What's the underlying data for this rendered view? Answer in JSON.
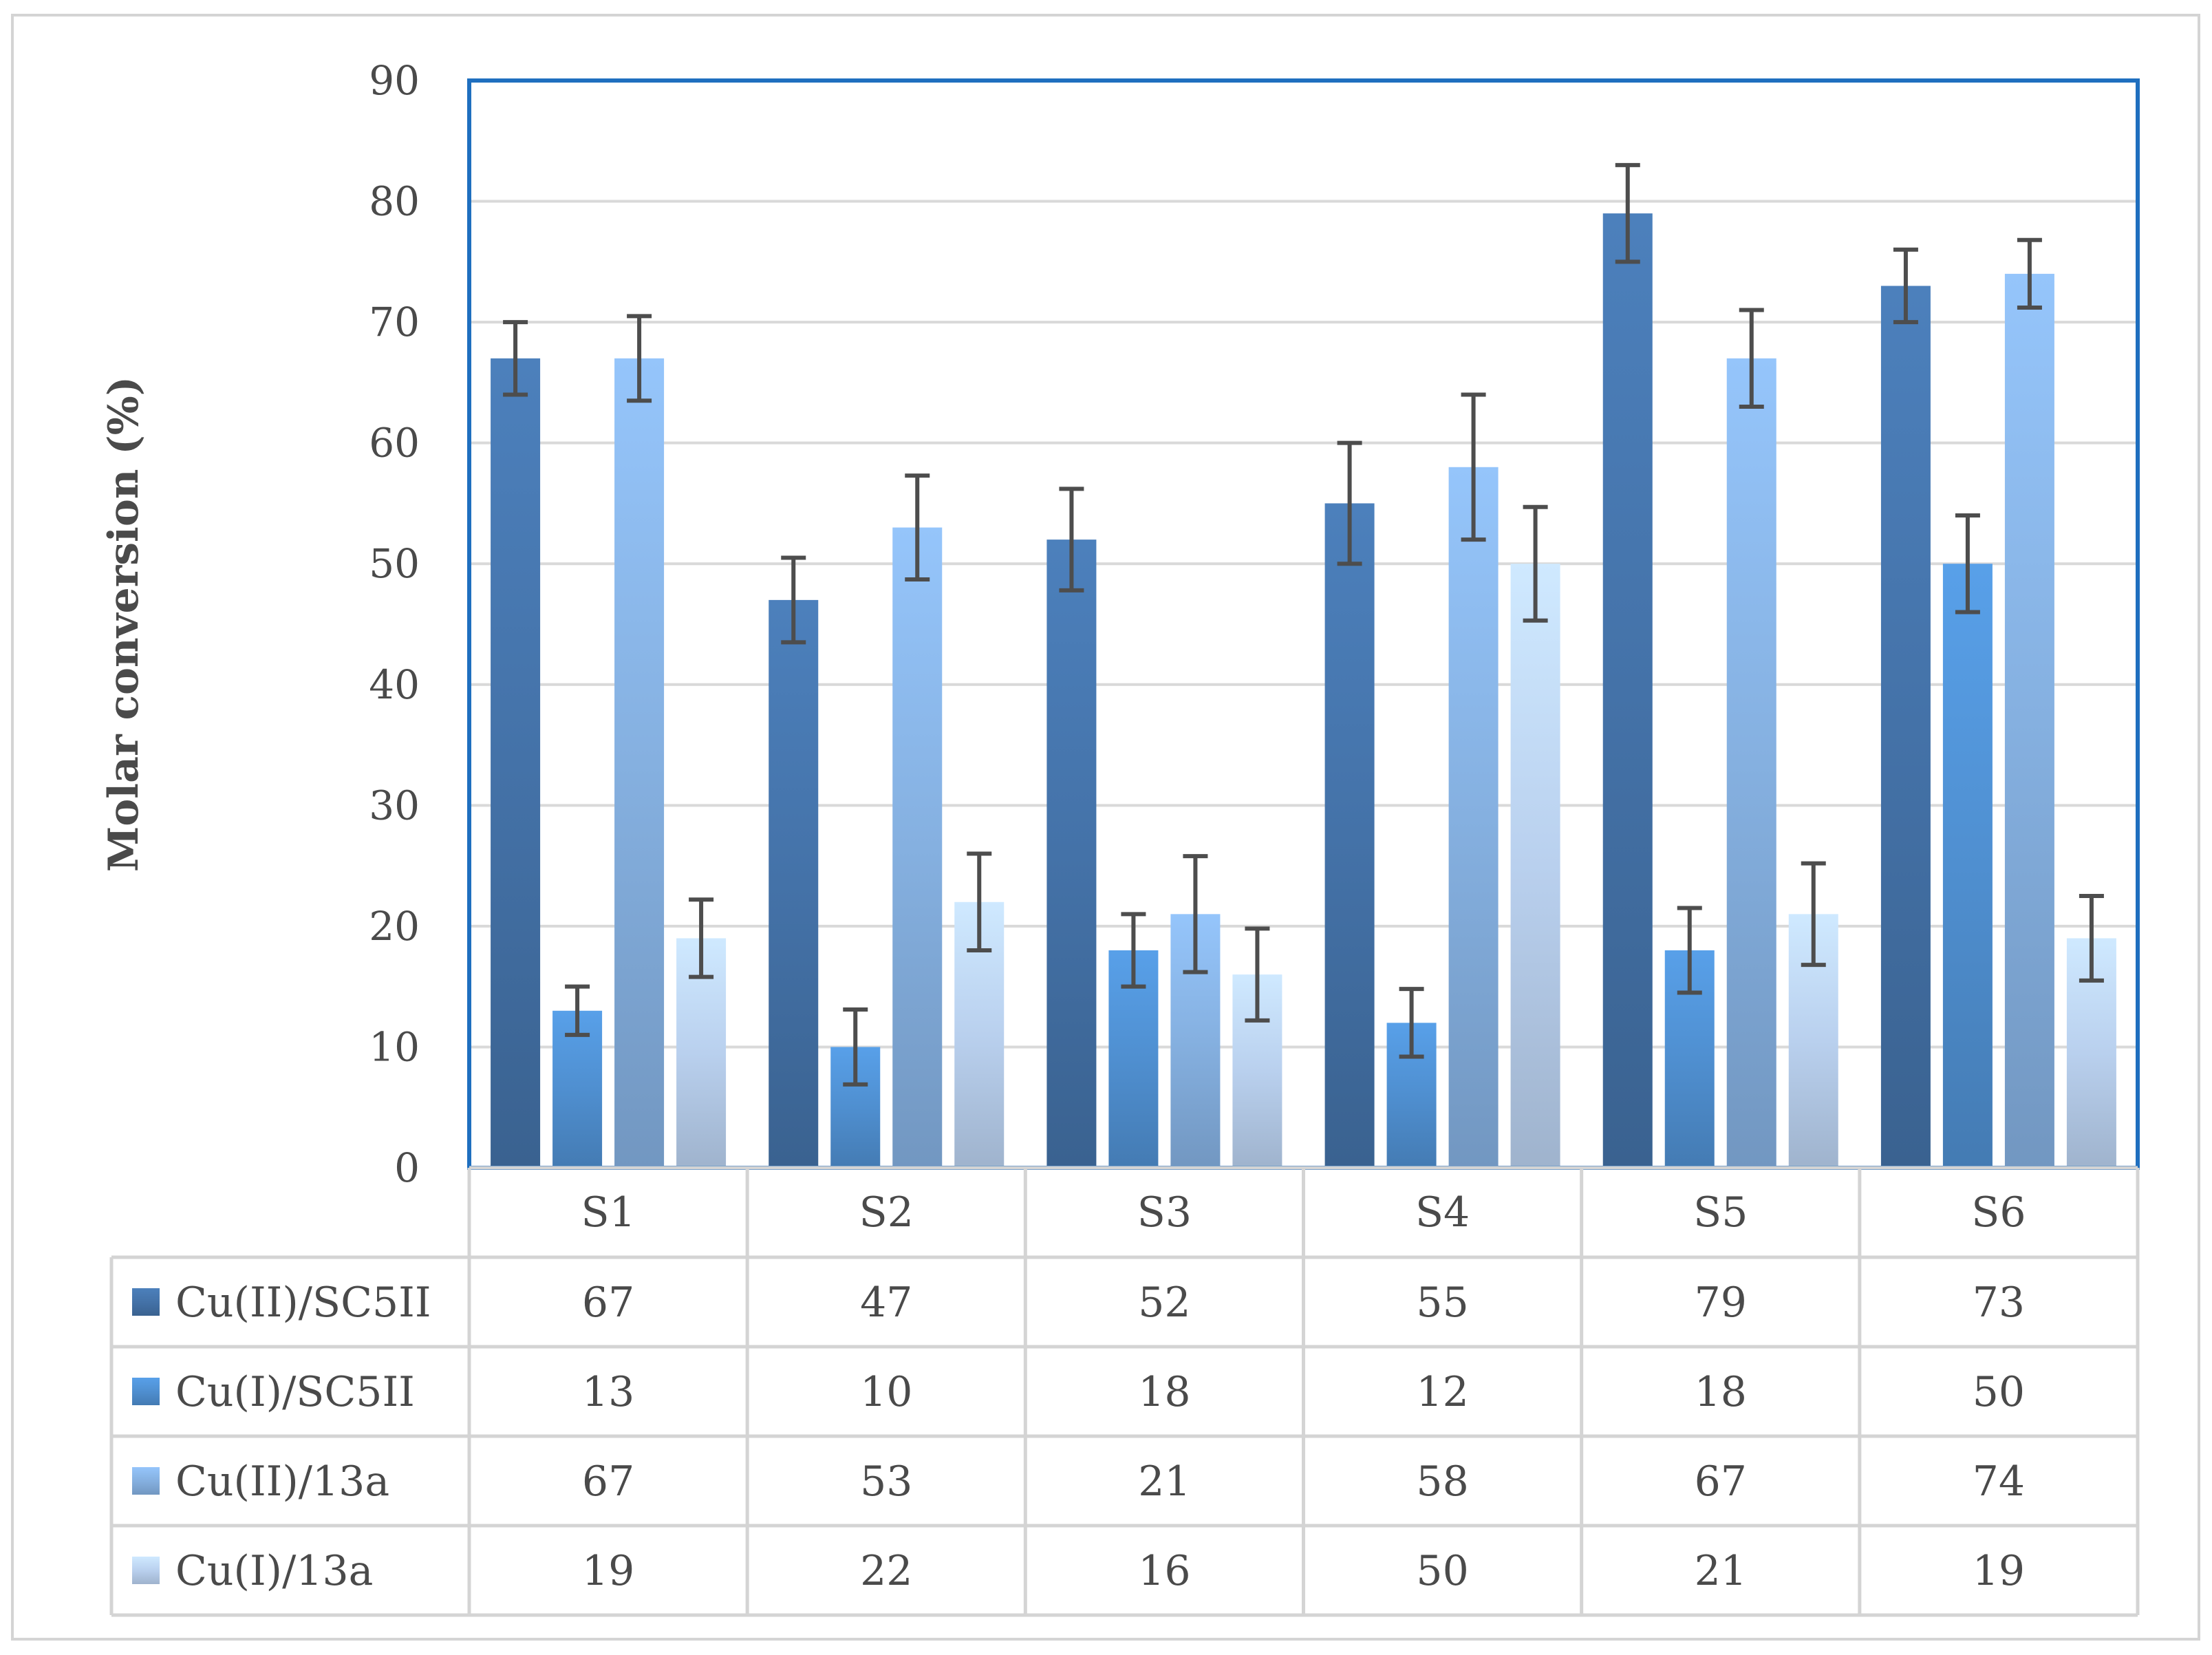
{
  "chart_data": {
    "type": "bar",
    "title": "",
    "xlabel": "",
    "ylabel": "Molar conversion (%)",
    "ylim": [
      0,
      90
    ],
    "yticks": [
      0,
      10,
      20,
      30,
      40,
      50,
      60,
      70,
      80,
      90
    ],
    "grid": true,
    "legend": "data-table",
    "categories": [
      "S1",
      "S2",
      "S3",
      "S4",
      "S5",
      "S6"
    ],
    "series": [
      {
        "name": "Cu(II)/SC5II",
        "color": "#4472a8",
        "values": [
          67,
          47,
          52,
          55,
          79,
          73
        ],
        "errors": [
          3,
          3.5,
          4.2,
          5,
          4,
          3
        ]
      },
      {
        "name": "Cu(I)/SC5II",
        "color": "#4f8fd0",
        "values": [
          13,
          10,
          18,
          12,
          18,
          50
        ],
        "errors": [
          2,
          3.1,
          3,
          2.8,
          3.5,
          4
        ]
      },
      {
        "name": "Cu(II)/13a",
        "color": "#85b0e0",
        "values": [
          67,
          53,
          21,
          58,
          67,
          74
        ],
        "errors": [
          3.5,
          4.3,
          4.8,
          6,
          4,
          2.8
        ]
      },
      {
        "name": "Cu(I)/13a",
        "color": "#b9d0ee",
        "values": [
          19,
          22,
          16,
          50,
          21,
          19
        ],
        "errors": [
          3.2,
          4,
          3.8,
          4.7,
          4.2,
          3.5
        ]
      }
    ]
  }
}
